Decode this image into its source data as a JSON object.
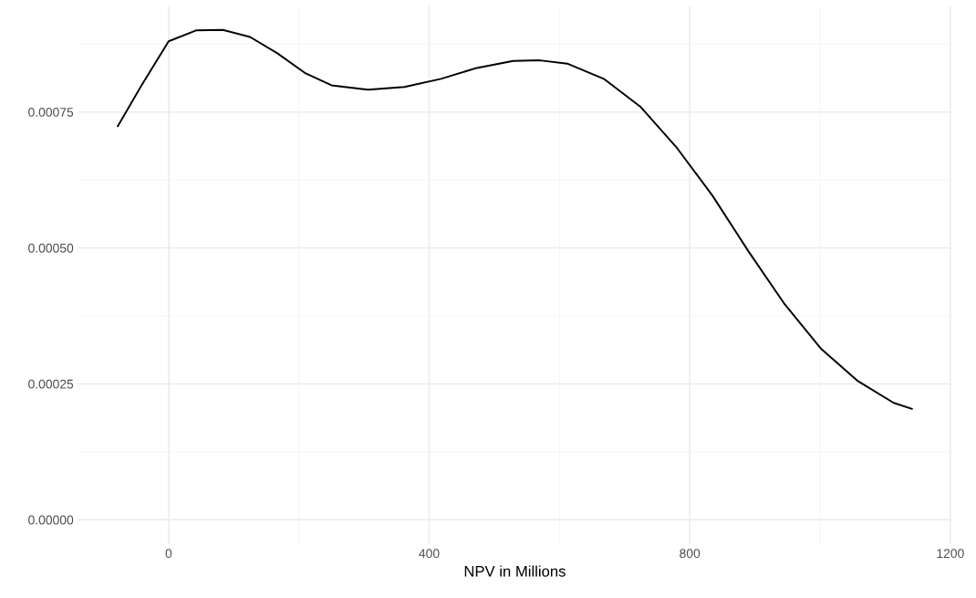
{
  "chart_data": {
    "type": "line",
    "xlabel": "NPV in Millions",
    "x": [
      -78,
      -42,
      0,
      42,
      83,
      125,
      167,
      209,
      250,
      306,
      362,
      418,
      473,
      529,
      570,
      612,
      668,
      724,
      779,
      835,
      890,
      946,
      1002,
      1057,
      1113,
      1141
    ],
    "series": [
      {
        "color": "#000000",
        "values": [
          0.000724,
          0.000798,
          0.00088,
          0.0009,
          0.000901,
          0.000888,
          0.000858,
          0.000822,
          0.000799,
          0.000791,
          0.000796,
          0.000811,
          0.000831,
          0.000844,
          0.000845,
          0.000839,
          0.000811,
          0.00076,
          0.000686,
          0.000596,
          0.000494,
          0.000396,
          0.000314,
          0.000256,
          0.000215,
          0.000204
        ]
      }
    ],
    "xlim": [
      -139,
      1202
    ],
    "ylim": [
      -4.5e-05,
      0.000945
    ],
    "xticks": [
      0,
      400,
      800,
      1200
    ],
    "yticks": [
      {
        "value": 0,
        "label": "0.00000"
      },
      {
        "value": 0.00025,
        "label": "0.00025"
      },
      {
        "value": 0.0005,
        "label": "0.00050"
      },
      {
        "value": 0.00075,
        "label": "0.00075"
      }
    ],
    "grid": true,
    "marker": "none",
    "line_style": "solid"
  }
}
